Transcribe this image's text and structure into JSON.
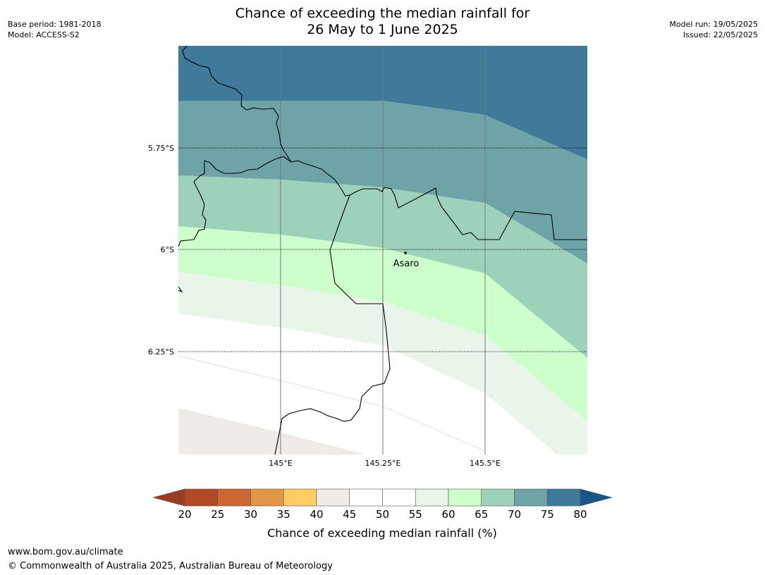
{
  "title_line1": "Chance of exceeding the median rainfall for",
  "title_line2": "26 May to 1 June 2025",
  "meta_left": {
    "base_period": "Base period: 1981-2018",
    "model": "Model: ACCESS-S2"
  },
  "meta_right": {
    "model_run": "Model run: 19/05/2025",
    "issued": "Issued: 22/05/2025"
  },
  "map": {
    "lat_labels": [
      "5.75°S",
      "6°S",
      "6.25°S"
    ],
    "lon_labels": [
      "145°E",
      "145.25°E",
      "145.5°E"
    ],
    "place": "Asaro"
  },
  "colorbar": {
    "ticks": [
      "20",
      "25",
      "30",
      "35",
      "40",
      "45",
      "50",
      "55",
      "60",
      "65",
      "70",
      "75",
      "80"
    ],
    "colors": [
      "#9b3b23",
      "#b34a26",
      "#cc6633",
      "#e29649",
      "#ffcc66",
      "#f0ebe6",
      "#ffffff",
      "#ffffff",
      "#eaf5ea",
      "#ccffcc",
      "#9dd1b9",
      "#6ea3a8",
      "#3f7a9b",
      "#1a5588"
    ],
    "label": "Chance of exceeding median rainfall (%)"
  },
  "footer": {
    "url": "www.bom.gov.au/climate",
    "copyright": "© Commonwealth of Australia 2025, Australian Bureau of Meteorology"
  }
}
